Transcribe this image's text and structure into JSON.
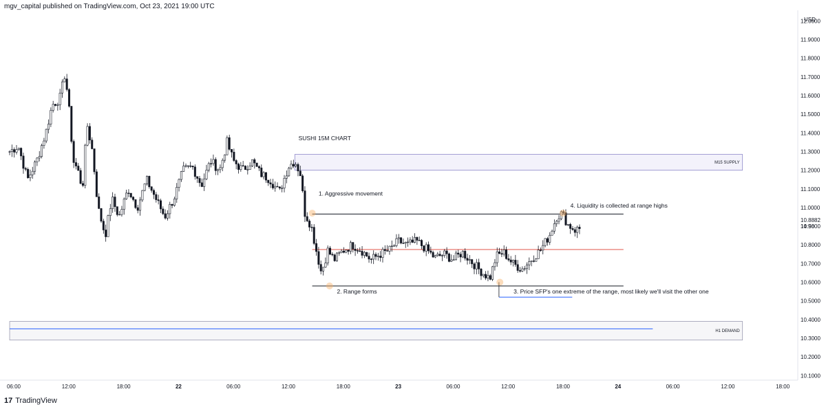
{
  "header": {
    "published": "mgv_capital published on TradingView.com, Oct 23, 2021 19:00 UTC"
  },
  "footer": {
    "logo_mark": "17",
    "brand": "TradingView"
  },
  "chart_data": {
    "type": "candlestick",
    "title": "SUSHI 15M CHART",
    "currency": "USD",
    "last_price": "10.8882",
    "countdown": "14:56",
    "ylim": [
      10.09,
      12.02
    ],
    "yticks": [
      "12.0000",
      "11.9000",
      "11.8000",
      "11.7000",
      "11.6000",
      "11.5000",
      "11.4000",
      "11.3000",
      "11.2000",
      "11.1000",
      "11.0000",
      "10.9000",
      "10.8000",
      "10.7000",
      "10.6000",
      "10.5000",
      "10.4000",
      "10.3000",
      "10.2000",
      "10.1000"
    ],
    "x_axis_labels": [
      "06:00",
      "12:00",
      "18:00",
      "22",
      "06:00",
      "12:00",
      "18:00",
      "23",
      "06:00",
      "12:00",
      "18:00",
      "24",
      "06:00",
      "12:00",
      "18:00"
    ],
    "x_axis_hours": [
      6,
      12,
      18,
      24,
      30,
      36,
      42,
      48,
      54,
      60,
      66,
      72,
      78,
      84,
      90
    ],
    "x_start_hour": 5.55,
    "x_end_hour": 91.0,
    "candle_path": [
      [
        5.55,
        11.3
      ],
      [
        6.5,
        11.33
      ],
      [
        7.5,
        11.15
      ],
      [
        8.5,
        11.25
      ],
      [
        9.5,
        11.4
      ],
      [
        10.2,
        11.55
      ],
      [
        11.0,
        11.58
      ],
      [
        11.6,
        11.72
      ],
      [
        12.0,
        11.55
      ],
      [
        12.5,
        11.25
      ],
      [
        13.0,
        11.2
      ],
      [
        13.5,
        11.1
      ],
      [
        14.0,
        11.45
      ],
      [
        14.6,
        11.3
      ],
      [
        15.2,
        11.0
      ],
      [
        16.0,
        10.85
      ],
      [
        16.7,
        11.05
      ],
      [
        17.5,
        10.95
      ],
      [
        18.5,
        11.1
      ],
      [
        19.5,
        11.0
      ],
      [
        20.5,
        11.15
      ],
      [
        21.5,
        11.05
      ],
      [
        22.5,
        10.95
      ],
      [
        23.5,
        11.05
      ],
      [
        24.5,
        11.2
      ],
      [
        25.5,
        11.22
      ],
      [
        26.5,
        11.12
      ],
      [
        27.5,
        11.25
      ],
      [
        28.5,
        11.2
      ],
      [
        29.3,
        11.35
      ],
      [
        30.0,
        11.25
      ],
      [
        31.0,
        11.2
      ],
      [
        32.0,
        11.25
      ],
      [
        33.0,
        11.18
      ],
      [
        34.0,
        11.15
      ],
      [
        35.0,
        11.08
      ],
      [
        36.0,
        11.22
      ],
      [
        36.7,
        11.25
      ],
      [
        37.3,
        11.18
      ],
      [
        37.8,
        10.97
      ],
      [
        38.5,
        10.9
      ],
      [
        39.0,
        10.78
      ],
      [
        39.6,
        10.65
      ],
      [
        40.3,
        10.77
      ],
      [
        41.0,
        10.72
      ],
      [
        42.0,
        10.77
      ],
      [
        43.0,
        10.8
      ],
      [
        44.0,
        10.77
      ],
      [
        45.0,
        10.72
      ],
      [
        46.0,
        10.75
      ],
      [
        47.0,
        10.77
      ],
      [
        48.0,
        10.82
      ],
      [
        49.0,
        10.8
      ],
      [
        50.0,
        10.82
      ],
      [
        51.0,
        10.78
      ],
      [
        52.0,
        10.73
      ],
      [
        53.0,
        10.75
      ],
      [
        54.0,
        10.72
      ],
      [
        55.0,
        10.76
      ],
      [
        56.0,
        10.71
      ],
      [
        57.0,
        10.66
      ],
      [
        58.0,
        10.62
      ],
      [
        58.7,
        10.74
      ],
      [
        59.5,
        10.76
      ],
      [
        60.5,
        10.7
      ],
      [
        61.5,
        10.67
      ],
      [
        62.5,
        10.72
      ],
      [
        63.5,
        10.77
      ],
      [
        64.5,
        10.85
      ],
      [
        65.3,
        10.95
      ],
      [
        65.9,
        10.97
      ],
      [
        66.5,
        10.91
      ],
      [
        67.3,
        10.88
      ],
      [
        68.0,
        10.89
      ]
    ],
    "zones": [
      {
        "label": "M15 SUPPLY",
        "from_hour": 36.7,
        "to_hour": 85.6,
        "top": 11.285,
        "bottom": 11.2,
        "fill": "#f3f2fb",
        "stroke": "#8e88c9"
      },
      {
        "label": "H1 DEMAND",
        "from_hour": 5.55,
        "to_hour": 85.6,
        "top": 10.39,
        "bottom": 10.29,
        "fill": "#f6f6f8",
        "stroke": "#9a9ab0"
      }
    ],
    "lines": [
      {
        "name": "range-high",
        "from_hour": 38.6,
        "to_hour": 72.6,
        "price": 10.965,
        "color": "#131722"
      },
      {
        "name": "range-mid",
        "from_hour": 38.6,
        "to_hour": 72.6,
        "price": 10.775,
        "color": "#e0564a"
      },
      {
        "name": "range-low",
        "from_hour": 38.6,
        "to_hour": 72.6,
        "price": 10.58,
        "color": "#131722"
      },
      {
        "name": "sfp-level",
        "from_hour": 59.0,
        "to_hour": 67.0,
        "price": 10.52,
        "color": "#2962ff"
      },
      {
        "name": "demand-line",
        "from_hour": 5.55,
        "to_hour": 75.8,
        "price": 10.35,
        "color": "#2962ff"
      }
    ],
    "markers": [
      {
        "hour": 38.6,
        "price": 10.97
      },
      {
        "hour": 40.5,
        "price": 10.58
      },
      {
        "hour": 59.1,
        "price": 10.6
      },
      {
        "hour": 66.0,
        "price": 10.97
      }
    ],
    "annotations": [
      {
        "text": "SUSHI 15M CHART",
        "hour": 37.1,
        "price": 11.36
      },
      {
        "text": "1. Aggressive movement",
        "hour": 39.3,
        "price": 11.065
      },
      {
        "text": "2. Range forms",
        "hour": 41.3,
        "price": 10.54
      },
      {
        "text": "3. Price SFP's one extreme of the range, most likely we'll visit the other one",
        "hour": 60.6,
        "price": 10.54
      },
      {
        "text": "4. Liquidity is collected at range highs",
        "hour": 66.8,
        "price": 11.0
      }
    ]
  }
}
